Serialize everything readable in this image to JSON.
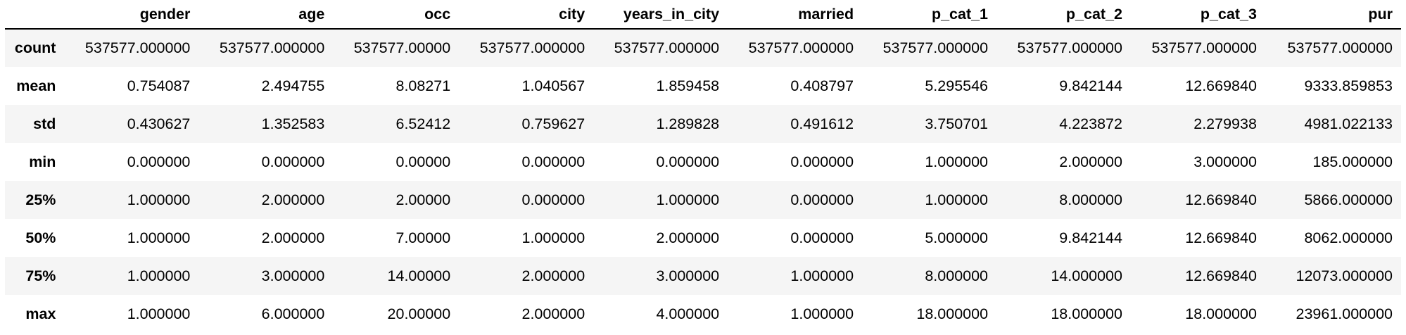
{
  "columns": [
    "gender",
    "age",
    "occ",
    "city",
    "years_in_city",
    "married",
    "p_cat_1",
    "p_cat_2",
    "p_cat_3",
    "pur"
  ],
  "rows": [
    {
      "label": "count",
      "cells": [
        "537577.000000",
        "537577.000000",
        "537577.00000",
        "537577.000000",
        "537577.000000",
        "537577.000000",
        "537577.000000",
        "537577.000000",
        "537577.000000",
        "537577.000000"
      ]
    },
    {
      "label": "mean",
      "cells": [
        "0.754087",
        "2.494755",
        "8.08271",
        "1.040567",
        "1.859458",
        "0.408797",
        "5.295546",
        "9.842144",
        "12.669840",
        "9333.859853"
      ]
    },
    {
      "label": "std",
      "cells": [
        "0.430627",
        "1.352583",
        "6.52412",
        "0.759627",
        "1.289828",
        "0.491612",
        "3.750701",
        "4.223872",
        "2.279938",
        "4981.022133"
      ]
    },
    {
      "label": "min",
      "cells": [
        "0.000000",
        "0.000000",
        "0.00000",
        "0.000000",
        "0.000000",
        "0.000000",
        "1.000000",
        "2.000000",
        "3.000000",
        "185.000000"
      ]
    },
    {
      "label": "25%",
      "cells": [
        "1.000000",
        "2.000000",
        "2.00000",
        "0.000000",
        "1.000000",
        "0.000000",
        "1.000000",
        "8.000000",
        "12.669840",
        "5866.000000"
      ]
    },
    {
      "label": "50%",
      "cells": [
        "1.000000",
        "2.000000",
        "7.00000",
        "1.000000",
        "2.000000",
        "0.000000",
        "5.000000",
        "9.842144",
        "12.669840",
        "8062.000000"
      ]
    },
    {
      "label": "75%",
      "cells": [
        "1.000000",
        "3.000000",
        "14.00000",
        "2.000000",
        "3.000000",
        "1.000000",
        "8.000000",
        "14.000000",
        "12.669840",
        "12073.000000"
      ]
    },
    {
      "label": "max",
      "cells": [
        "1.000000",
        "6.000000",
        "20.00000",
        "2.000000",
        "4.000000",
        "1.000000",
        "18.000000",
        "18.000000",
        "18.000000",
        "23961.000000"
      ]
    }
  ]
}
